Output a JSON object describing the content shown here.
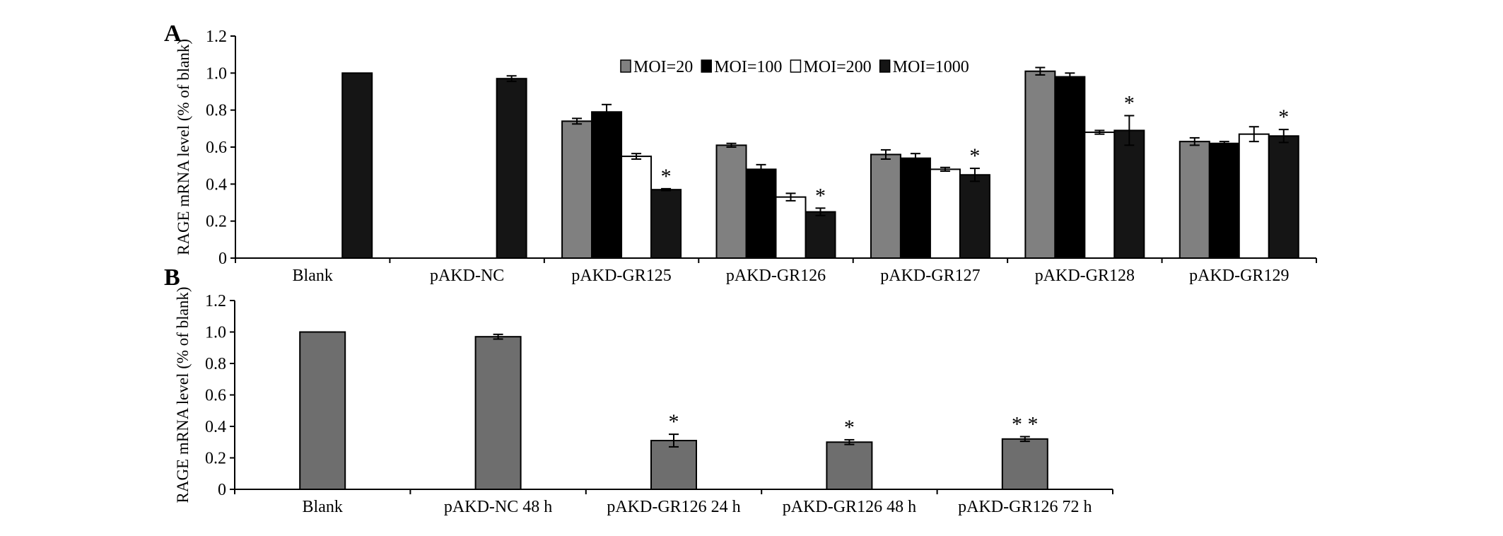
{
  "chart_data": [
    {
      "panel_label": "A",
      "type": "bar",
      "ylabel": "RAGE mRNA level (% of blank)",
      "ylim": [
        0,
        1.2
      ],
      "yticks": [
        "0",
        "0.2",
        "0.4",
        "0.6",
        "0.8",
        "1.0",
        "1.2"
      ],
      "categories": [
        "Blank",
        "pAKD-NC",
        "pAKD-GR125",
        "pAKD-GR126",
        "pAKD-GR127",
        "pAKD-GR128",
        "pAKD-GR129"
      ],
      "legend_position": "top-right",
      "series": [
        {
          "name": "MOI=20",
          "color": "#808080",
          "values": [
            null,
            null,
            0.74,
            0.61,
            0.56,
            1.01,
            0.63
          ],
          "errors": [
            null,
            null,
            0.015,
            0.01,
            0.025,
            0.02,
            0.02
          ]
        },
        {
          "name": "MOI=100",
          "color": "#000000",
          "values": [
            null,
            null,
            0.79,
            0.48,
            0.54,
            0.98,
            0.62
          ],
          "errors": [
            null,
            null,
            0.04,
            0.025,
            0.025,
            0.02,
            0.01
          ]
        },
        {
          "name": "MOI=200",
          "color": "#ffffff",
          "values": [
            null,
            null,
            0.55,
            0.33,
            0.48,
            0.68,
            0.67
          ],
          "errors": [
            null,
            null,
            0.015,
            0.02,
            0.01,
            0.01,
            0.04
          ]
        },
        {
          "name": "MOI=1000",
          "color": "#1a1a1a",
          "values": [
            1.0,
            0.97,
            0.37,
            0.25,
            0.45,
            0.69,
            0.66
          ],
          "errors": [
            null,
            0.015,
            0.005,
            0.02,
            0.035,
            0.08,
            0.035
          ]
        }
      ],
      "annotations": [
        {
          "category": "pAKD-GR125",
          "series": "MOI=1000",
          "text": "*"
        },
        {
          "category": "pAKD-GR126",
          "series": "MOI=1000",
          "text": "*"
        },
        {
          "category": "pAKD-GR127",
          "series": "MOI=1000",
          "text": "*"
        },
        {
          "category": "pAKD-GR128",
          "series": "MOI=1000",
          "text": "*"
        },
        {
          "category": "pAKD-GR129",
          "series": "MOI=1000",
          "text": "*"
        }
      ]
    },
    {
      "panel_label": "B",
      "type": "bar",
      "ylabel": "RAGE mRNA level (% of blank)",
      "ylim": [
        0,
        1.2
      ],
      "yticks": [
        "0",
        "0.2",
        "0.4",
        "0.6",
        "0.8",
        "1.0",
        "1.2"
      ],
      "categories": [
        "Blank",
        "pAKD-NC 48 h",
        "pAKD-GR126 24 h",
        "pAKD-GR126 48 h",
        "pAKD-GR126 72 h"
      ],
      "bar_color": "#6e6e6e",
      "values": [
        1.0,
        0.97,
        0.31,
        0.3,
        0.32
      ],
      "errors": [
        null,
        0.015,
        0.04,
        0.015,
        0.015
      ],
      "annotations": [
        {
          "category": "pAKD-GR126 24 h",
          "text": "*"
        },
        {
          "category": "pAKD-GR126 48 h",
          "text": "*"
        },
        {
          "category": "pAKD-GR126 72 h",
          "text": "* *"
        }
      ]
    }
  ]
}
